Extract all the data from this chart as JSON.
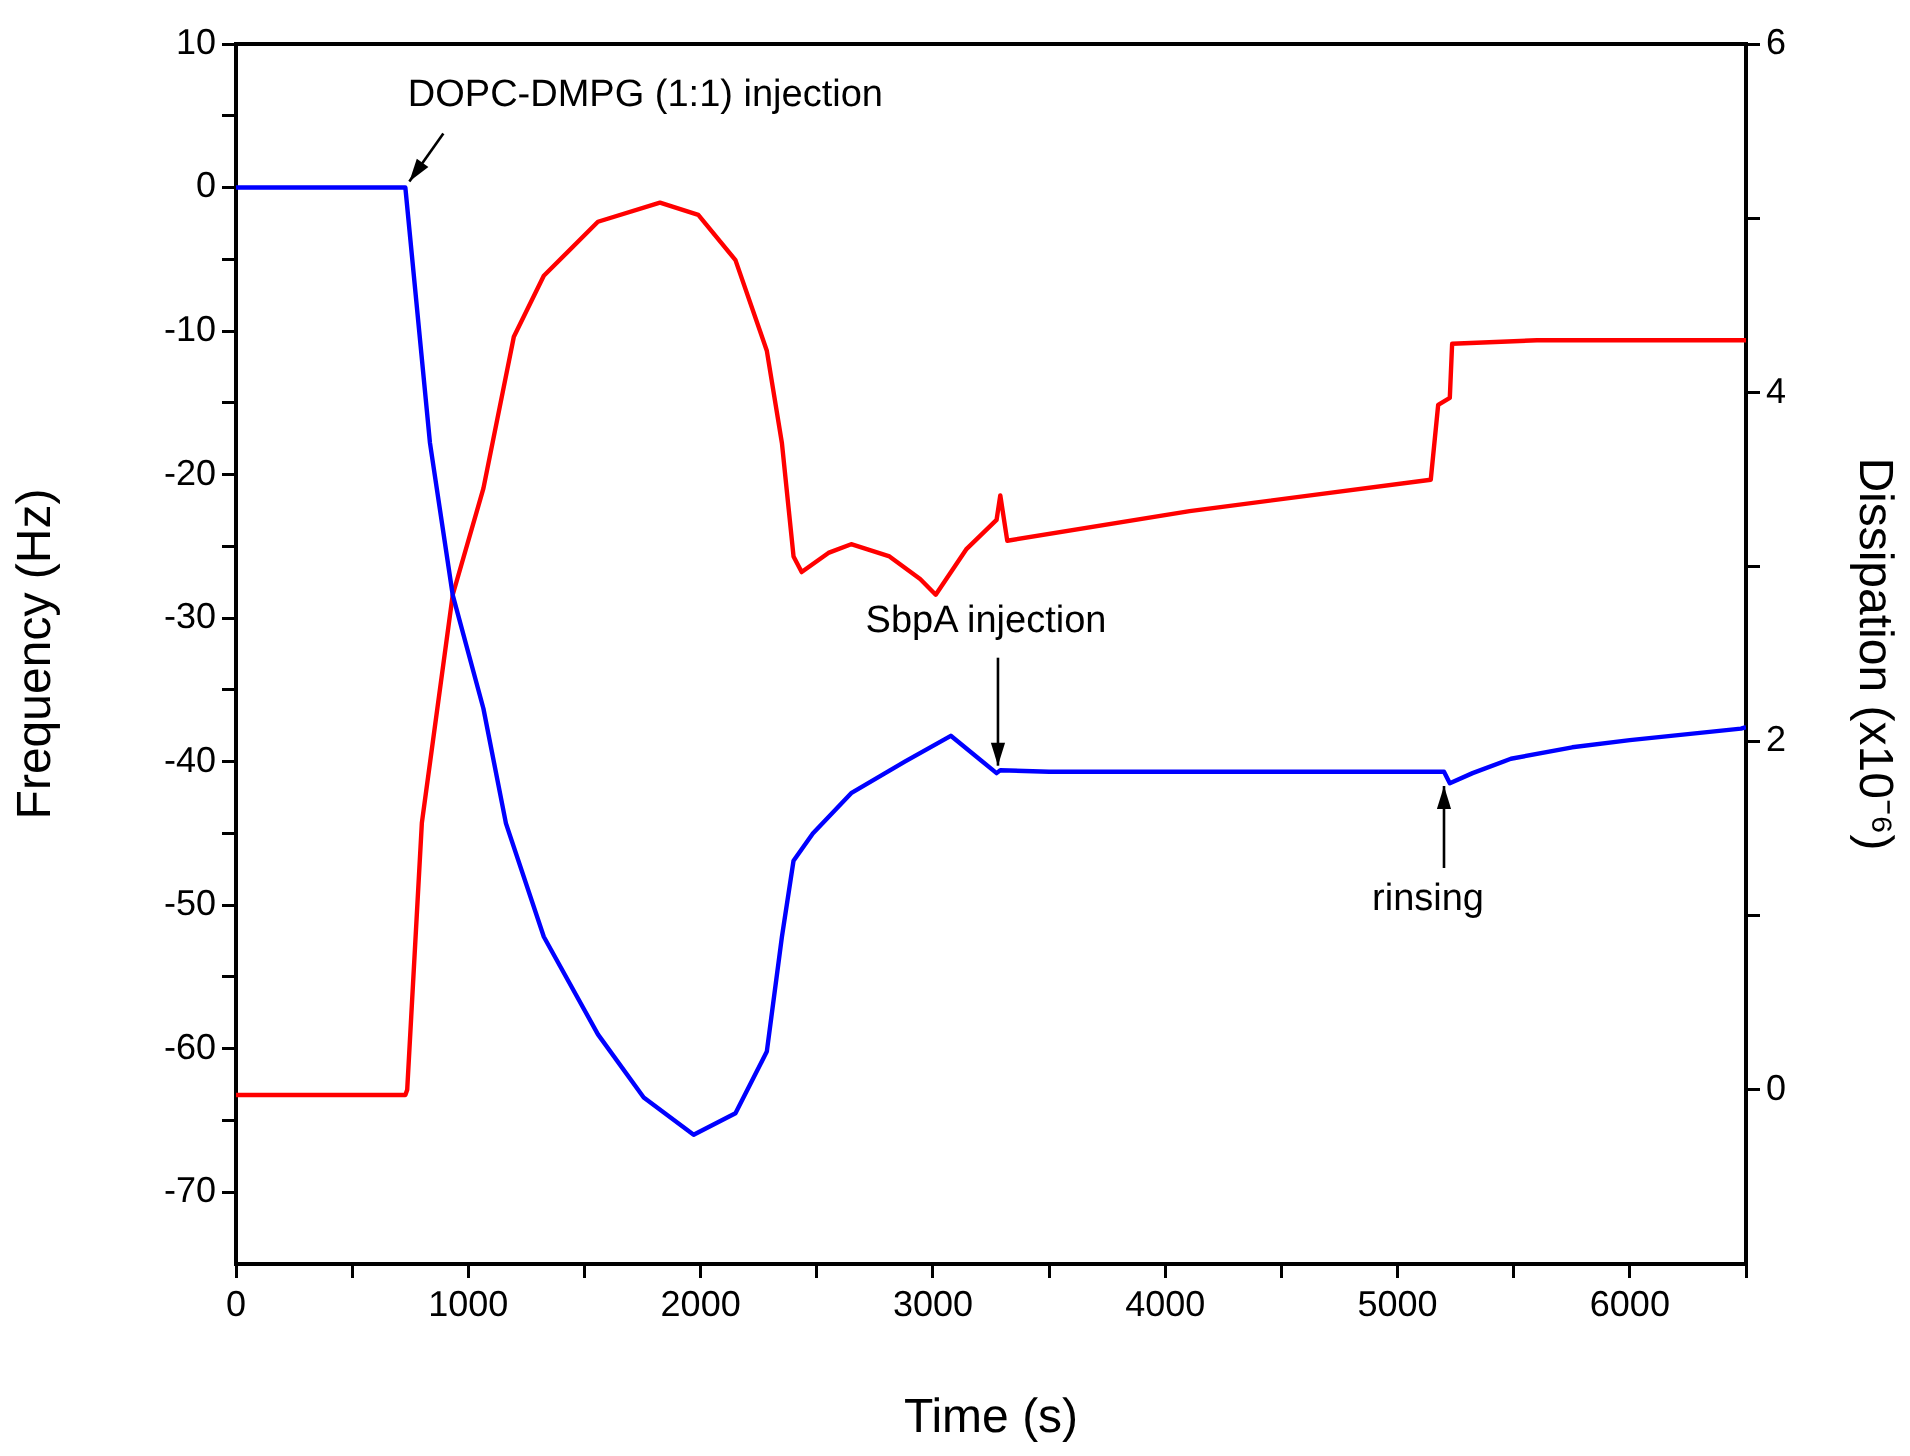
{
  "chart_data": {
    "type": "line",
    "xlabel": "Time (s)",
    "ylabel": "Frequency (Hz)",
    "y2label": "Dissipation (x10⁻⁶)",
    "xlim": [
      0,
      6500
    ],
    "xticks": [
      0,
      {
        "value": 500,
        "label": null
      },
      1000,
      {
        "value": 1500,
        "label": null
      },
      2000,
      {
        "value": 2500,
        "label": null
      },
      3000,
      {
        "value": 3500,
        "label": null
      },
      4000,
      {
        "value": 4500,
        "label": null
      },
      5000,
      {
        "value": 5500,
        "label": null
      },
      6000,
      {
        "value": 6500,
        "label": null
      }
    ],
    "ylim": [
      -75,
      10
    ],
    "yticks": [
      -70,
      {
        "value": -65,
        "label": null
      },
      -60,
      {
        "value": -55,
        "label": null
      },
      -50,
      {
        "value": -45,
        "label": null
      },
      -40,
      {
        "value": -35,
        "label": null
      },
      -30,
      {
        "value": -25,
        "label": null
      },
      -20,
      {
        "value": -15,
        "label": null
      },
      -10,
      {
        "value": -5,
        "label": null
      },
      0,
      {
        "value": 5,
        "label": null
      },
      10
    ],
    "y2lim": [
      -1,
      6
    ],
    "y2ticks": [
      0,
      {
        "value": 1,
        "label": null
      },
      2,
      {
        "value": 3,
        "label": null
      },
      4,
      {
        "value": 5,
        "label": null
      },
      6
    ],
    "grid": false,
    "legend": false,
    "marker": "none",
    "line_style": "solid",
    "series": [
      {
        "color": "#0000ff",
        "x": [
          0,
          400,
          729,
          835,
          933,
          1065,
          1162,
          1325,
          1558,
          1755,
          1970,
          2150,
          2285,
          2350,
          2400,
          2483,
          2648,
          2879,
          3077,
          3274,
          3290,
          3500,
          4000,
          4500,
          5000,
          5200,
          5225,
          5323,
          5488,
          5752,
          6000,
          6478,
          6500
        ],
        "values": [
          0,
          0,
          0,
          -17.8,
          -28.4,
          -36.3,
          -44.3,
          -52.2,
          -59,
          -63.4,
          -66,
          -64.5,
          -60.2,
          -52.2,
          -46.9,
          -45,
          -42.2,
          -40,
          -38.2,
          -40.8,
          -40.6,
          -40.7,
          -40.7,
          -40.7,
          -40.7,
          -40.7,
          -41.5,
          -40.8,
          -39.8,
          -39,
          -38.5,
          -37.7,
          -37.6
        ]
      },
      {
        "color": "#ff0000",
        "axis": "y2",
        "x": [
          0,
          400,
          729,
          737,
          800,
          933,
          1065,
          1196,
          1325,
          1558,
          1825,
          1990,
          2150,
          2285,
          2350,
          2400,
          2435,
          2550,
          2648,
          2813,
          2945,
          3012,
          3143,
          3274,
          3290,
          3320,
          4105,
          5143,
          5175,
          5225,
          5235,
          5600,
          6000,
          6500
        ],
        "values": [
          -0.03,
          -0.03,
          -0.03,
          0,
          1.53,
          2.84,
          3.45,
          4.32,
          4.67,
          4.98,
          5.09,
          5.02,
          4.76,
          4.24,
          3.71,
          3.06,
          2.97,
          3.08,
          3.13,
          3.06,
          2.93,
          2.84,
          3.1,
          3.27,
          3.41,
          3.15,
          3.32,
          3.5,
          3.93,
          3.97,
          4.28,
          4.3,
          4.3,
          4.3
        ]
      }
    ],
    "annotations": [
      {
        "text": "DOPC-DMPG (1:1) injection",
        "x": 729,
        "y": 0
      },
      {
        "text": "SbpA injection",
        "x": 3280,
        "y": -40.7
      },
      {
        "text": "rinsing",
        "x": 5200,
        "y": -41
      }
    ]
  }
}
